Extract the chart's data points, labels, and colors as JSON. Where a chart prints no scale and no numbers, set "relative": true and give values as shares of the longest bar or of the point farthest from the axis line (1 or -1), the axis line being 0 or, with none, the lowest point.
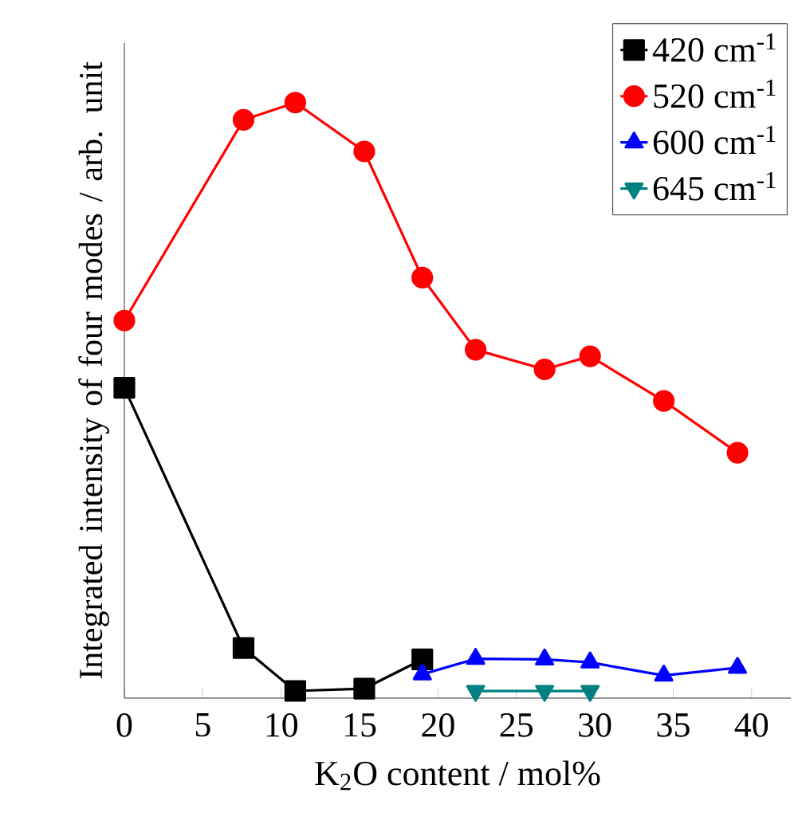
{
  "chart_data": {
    "type": "line",
    "relative": true,
    "xlabel": "K$_{2}$O content / mol%",
    "ylabel": "Integrated intensity of four modes / arb. unit",
    "xlim": [
      0,
      42.5
    ],
    "xticks": [
      0,
      5,
      10,
      15,
      20,
      25,
      30,
      35,
      40
    ],
    "legend": "top right",
    "line_style": "solid",
    "series": [
      {
        "name": "420 cm$^{-1}$",
        "color": "#000000",
        "marker": "square",
        "x": [
          0,
          7.6,
          10.9,
          15.3,
          19
        ],
        "values": [
          0.521,
          0.084,
          0.012,
          0.016,
          0.065
        ]
      },
      {
        "name": "520 cm$^{-1}$",
        "color": "#ff0000",
        "marker": "circle",
        "x": [
          0,
          7.6,
          10.9,
          15.3,
          19,
          22.4,
          26.8,
          29.7,
          34.4,
          39.1
        ],
        "values": [
          0.634,
          0.971,
          1,
          0.918,
          0.706,
          0.585,
          0.552,
          0.574,
          0.499,
          0.412
        ]
      },
      {
        "name": "600 cm$^{-1}$",
        "color": "#0000ff",
        "marker": "triangle",
        "x": [
          19,
          22.4,
          26.8,
          29.7,
          34.4,
          39.1
        ],
        "values": [
          0.04,
          0.066,
          0.065,
          0.06,
          0.038,
          0.051
        ]
      },
      {
        "name": "645 cm$^{-1}$",
        "color": "#008080",
        "marker": "triangle down",
        "x": [
          22.4,
          26.8,
          29.7
        ],
        "values": [
          0.012,
          0.012,
          0.012
        ]
      }
    ]
  }
}
